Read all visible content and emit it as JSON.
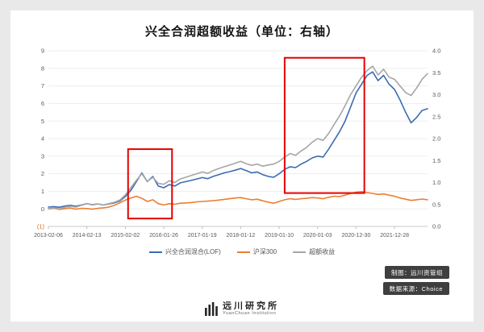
{
  "chart_data": {
    "type": "line",
    "title": "兴全合润超额收益（单位：右轴）",
    "x_tick_labels": [
      "2013-02-06",
      "2014-02-13",
      "2015-02-02",
      "2016-01-26",
      "2017-01-19",
      "2018-01-12",
      "2019-01-10",
      "2020-01-03",
      "2020-12-30",
      "2021-12-28"
    ],
    "x_tick_indices": [
      0,
      7,
      14,
      21,
      28,
      35,
      42,
      49,
      56,
      63
    ],
    "left_axis": {
      "min": -1,
      "max": 9,
      "ticks": [
        "9",
        "8",
        "7",
        "6",
        "5",
        "4",
        "3",
        "2",
        "1",
        "0",
        "(1)"
      ]
    },
    "right_axis": {
      "min": 0,
      "max": 4,
      "ticks": [
        "4.0",
        "3.5",
        "3.0",
        "2.5",
        "2.0",
        "1.5",
        "1.0",
        "0.5",
        "0.0"
      ]
    },
    "grid": "horizontal",
    "legend_position": "bottom",
    "series": [
      {
        "name": "兴全合润混合(LOF)",
        "axis": "left",
        "color": "#3a6cb4",
        "values": [
          0.1,
          0.13,
          0.09,
          0.16,
          0.2,
          0.15,
          0.22,
          0.3,
          0.24,
          0.28,
          0.22,
          0.28,
          0.34,
          0.45,
          0.7,
          1.05,
          1.55,
          2.05,
          1.55,
          1.85,
          1.3,
          1.2,
          1.38,
          1.3,
          1.48,
          1.55,
          1.62,
          1.7,
          1.78,
          1.72,
          1.85,
          1.95,
          2.05,
          2.12,
          2.2,
          2.3,
          2.18,
          2.05,
          2.1,
          1.95,
          1.85,
          1.8,
          2.0,
          2.25,
          2.4,
          2.35,
          2.55,
          2.7,
          2.9,
          3.0,
          2.95,
          3.4,
          3.9,
          4.4,
          5.0,
          5.8,
          6.6,
          7.1,
          7.6,
          7.8,
          7.3,
          7.6,
          7.1,
          6.8,
          6.2,
          5.5,
          4.9,
          5.2,
          5.6,
          5.7
        ]
      },
      {
        "name": "沪深300",
        "axis": "left",
        "color": "#ed7d31",
        "values": [
          0.0,
          0.03,
          -0.03,
          0.02,
          0.05,
          -0.02,
          0.03,
          0.02,
          -0.02,
          0.03,
          0.06,
          0.1,
          0.2,
          0.35,
          0.5,
          0.62,
          0.72,
          0.6,
          0.42,
          0.52,
          0.3,
          0.22,
          0.3,
          0.26,
          0.32,
          0.34,
          0.36,
          0.4,
          0.42,
          0.44,
          0.47,
          0.5,
          0.54,
          0.58,
          0.62,
          0.64,
          0.58,
          0.52,
          0.55,
          0.46,
          0.38,
          0.32,
          0.42,
          0.52,
          0.58,
          0.54,
          0.58,
          0.6,
          0.64,
          0.62,
          0.58,
          0.66,
          0.72,
          0.7,
          0.78,
          0.88,
          0.95,
          0.98,
          0.92,
          0.88,
          0.82,
          0.85,
          0.78,
          0.72,
          0.62,
          0.55,
          0.48,
          0.52,
          0.56,
          0.52
        ]
      },
      {
        "name": "超额收益",
        "axis": "right",
        "color": "#a6a6a6",
        "values": [
          0.4,
          0.42,
          0.4,
          0.44,
          0.46,
          0.44,
          0.48,
          0.52,
          0.49,
          0.51,
          0.49,
          0.52,
          0.55,
          0.6,
          0.72,
          0.88,
          1.05,
          1.2,
          1.02,
          1.12,
          0.98,
          0.96,
          1.04,
          1.0,
          1.08,
          1.12,
          1.16,
          1.2,
          1.24,
          1.21,
          1.27,
          1.32,
          1.36,
          1.4,
          1.44,
          1.48,
          1.43,
          1.39,
          1.42,
          1.37,
          1.4,
          1.42,
          1.48,
          1.58,
          1.66,
          1.62,
          1.72,
          1.8,
          1.92,
          2.0,
          1.96,
          2.12,
          2.32,
          2.52,
          2.75,
          3.0,
          3.2,
          3.4,
          3.55,
          3.65,
          3.45,
          3.58,
          3.4,
          3.35,
          3.2,
          3.05,
          2.98,
          3.15,
          3.35,
          3.48
        ]
      }
    ],
    "annotations": [
      {
        "type": "rect",
        "x0": 14.5,
        "x1": 22.5,
        "y0": -0.55,
        "y1": 3.4,
        "color": "#e60000"
      },
      {
        "type": "rect",
        "x0": 43.0,
        "x1": 57.5,
        "y0": 0.9,
        "y1": 8.6,
        "color": "#e60000"
      }
    ],
    "colors": {
      "background": "#e9e9e9",
      "card": "#ffffff",
      "gridline": "#ededed",
      "axis_text": "#595959",
      "negative_tick": "#e26b0a"
    }
  },
  "footer": {
    "credit_badge": "制图：远川资管组",
    "source_badge": "数据来源：Choice",
    "logo_name": "远川研究所",
    "logo_sub": "YuanChuan Institution"
  }
}
